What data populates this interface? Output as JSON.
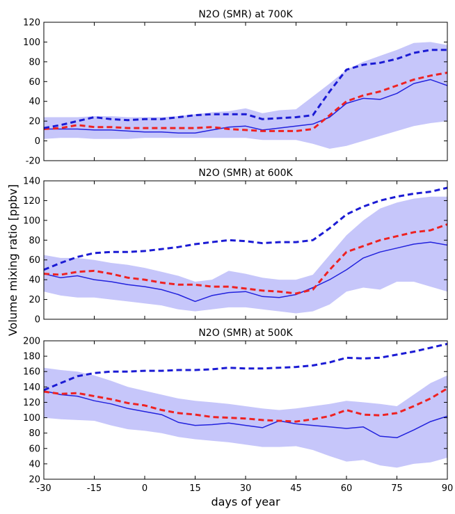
{
  "figure": {
    "ylabel": "Volume mixing ratio [ppbv]",
    "xlabel": "days of year",
    "xlim": [
      -30,
      90
    ],
    "xticks": [
      -30,
      -15,
      0,
      15,
      30,
      45,
      60,
      75,
      90
    ]
  },
  "chart_data": [
    {
      "type": "line",
      "title": "N2O (SMR) at 700K",
      "ylim": [
        -20,
        120
      ],
      "yticks": [
        -20,
        0,
        20,
        40,
        60,
        80,
        100,
        120
      ],
      "x": [
        -30,
        -25,
        -20,
        -15,
        -10,
        -5,
        0,
        5,
        10,
        15,
        20,
        25,
        30,
        35,
        40,
        45,
        50,
        55,
        60,
        65,
        70,
        75,
        80,
        85,
        90
      ],
      "band": {
        "color": "#c6c6fa",
        "upper": [
          24,
          24,
          24,
          25,
          25,
          24,
          24,
          24,
          25,
          27,
          29,
          30,
          33,
          28,
          31,
          32,
          45,
          58,
          72,
          80,
          86,
          92,
          99,
          100,
          97
        ],
        "lower": [
          2,
          3,
          3,
          2,
          2,
          2,
          3,
          3,
          3,
          3,
          3,
          3,
          3,
          1,
          1,
          1,
          -3,
          -8,
          -5,
          0,
          5,
          10,
          15,
          18,
          20
        ]
      },
      "series": [
        {
          "style": "solid",
          "color": "#2222dd",
          "values": [
            12,
            12,
            12,
            11,
            11,
            10,
            9,
            9,
            8,
            8,
            11,
            14,
            15,
            11,
            13,
            15,
            17,
            24,
            38,
            43,
            42,
            48,
            58,
            62,
            56
          ]
        },
        {
          "style": "dashed",
          "color": "#ee2222",
          "values": [
            12,
            13,
            16,
            14,
            14,
            13,
            13,
            13,
            13,
            13,
            14,
            12,
            11,
            10,
            10,
            10,
            12,
            26,
            40,
            46,
            50,
            56,
            62,
            66,
            69
          ]
        },
        {
          "style": "dashed",
          "color": "#1b1bd4",
          "values": [
            13,
            16,
            20,
            24,
            22,
            21,
            22,
            22,
            24,
            26,
            27,
            27,
            27,
            22,
            23,
            24,
            26,
            50,
            72,
            77,
            79,
            83,
            89,
            92,
            92
          ]
        }
      ]
    },
    {
      "type": "line",
      "title": "N2O (SMR) at 600K",
      "ylim": [
        0,
        140
      ],
      "yticks": [
        0,
        20,
        40,
        60,
        80,
        100,
        120,
        140
      ],
      "x": [
        -30,
        -25,
        -20,
        -15,
        -10,
        -5,
        0,
        5,
        10,
        15,
        20,
        25,
        30,
        35,
        40,
        45,
        50,
        55,
        60,
        65,
        70,
        75,
        80,
        85,
        90
      ],
      "band": {
        "color": "#c6c6fa",
        "upper": [
          65,
          62,
          62,
          60,
          57,
          55,
          52,
          48,
          44,
          38,
          40,
          49,
          46,
          42,
          40,
          40,
          45,
          65,
          85,
          100,
          112,
          118,
          122,
          124,
          124
        ],
        "lower": [
          28,
          24,
          22,
          22,
          20,
          18,
          16,
          14,
          10,
          8,
          10,
          12,
          12,
          10,
          8,
          6,
          8,
          15,
          28,
          32,
          30,
          38,
          38,
          33,
          28
        ]
      },
      "series": [
        {
          "style": "solid",
          "color": "#2222dd",
          "values": [
            46,
            42,
            44,
            40,
            38,
            35,
            33,
            30,
            25,
            18,
            24,
            27,
            28,
            23,
            22,
            25,
            32,
            40,
            50,
            62,
            68,
            72,
            76,
            78,
            75
          ]
        },
        {
          "style": "dashed",
          "color": "#ee2222",
          "values": [
            46,
            45,
            48,
            49,
            46,
            42,
            40,
            37,
            35,
            35,
            33,
            33,
            31,
            29,
            28,
            26,
            30,
            50,
            68,
            74,
            80,
            84,
            88,
            90,
            96
          ]
        },
        {
          "style": "dashed",
          "color": "#1b1bd4",
          "values": [
            50,
            57,
            63,
            67,
            68,
            68,
            69,
            71,
            73,
            76,
            78,
            80,
            79,
            77,
            78,
            78,
            80,
            92,
            106,
            114,
            120,
            124,
            127,
            129,
            133
          ]
        }
      ]
    },
    {
      "type": "line",
      "title": "N2O (SMR) at 500K",
      "ylim": [
        20,
        200
      ],
      "yticks": [
        20,
        40,
        60,
        80,
        100,
        120,
        140,
        160,
        180,
        200
      ],
      "x": [
        -30,
        -25,
        -20,
        -15,
        -10,
        -5,
        0,
        5,
        10,
        15,
        20,
        25,
        30,
        35,
        40,
        45,
        50,
        55,
        60,
        65,
        70,
        75,
        80,
        85,
        90
      ],
      "band": {
        "color": "#c6c6fa",
        "upper": [
          165,
          162,
          160,
          155,
          148,
          140,
          135,
          130,
          125,
          122,
          120,
          118,
          115,
          112,
          110,
          112,
          115,
          118,
          122,
          120,
          118,
          115,
          130,
          145,
          155
        ],
        "lower": [
          100,
          98,
          97,
          96,
          90,
          85,
          83,
          80,
          75,
          72,
          70,
          68,
          65,
          62,
          62,
          63,
          58,
          50,
          43,
          45,
          38,
          35,
          40,
          42,
          48
        ]
      },
      "series": [
        {
          "style": "solid",
          "color": "#2222dd",
          "values": [
            135,
            130,
            128,
            122,
            118,
            112,
            108,
            104,
            94,
            90,
            91,
            93,
            90,
            87,
            96,
            92,
            90,
            88,
            86,
            88,
            76,
            74,
            84,
            95,
            102
          ]
        },
        {
          "style": "dashed",
          "color": "#ee2222",
          "values": [
            134,
            131,
            132,
            128,
            124,
            119,
            116,
            110,
            106,
            104,
            101,
            100,
            99,
            97,
            96,
            95,
            98,
            102,
            110,
            104,
            103,
            106,
            115,
            125,
            138
          ]
        },
        {
          "style": "dashed",
          "color": "#1b1bd4",
          "values": [
            136,
            145,
            154,
            158,
            160,
            160,
            161,
            161,
            162,
            162,
            163,
            165,
            164,
            164,
            165,
            166,
            168,
            172,
            178,
            177,
            178,
            182,
            186,
            191,
            196
          ]
        }
      ]
    }
  ]
}
